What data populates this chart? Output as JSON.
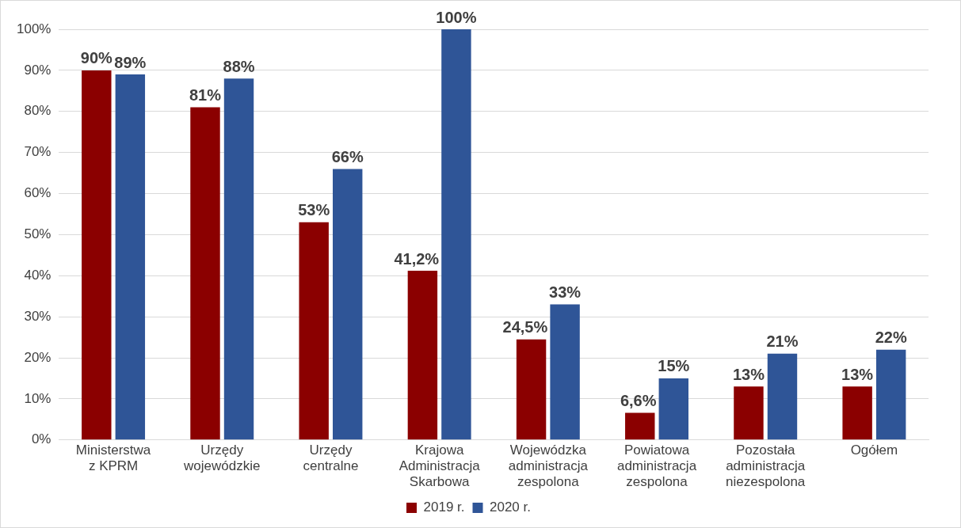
{
  "chart_data": {
    "type": "bar",
    "categories": [
      "Ministerstwa z KPRM",
      "Urzędy wojewódzkie",
      "Urzędy centralne",
      "Krajowa Administracja Skarbowa",
      "Wojewódzka administracja zespolona",
      "Powiatowa administracja zespolona",
      "Pozostała administracja niezespolona",
      "Ogółem"
    ],
    "series": [
      {
        "name": "2019 r.",
        "color": "#8b0000",
        "values": [
          90,
          81,
          53,
          41.2,
          24.5,
          6.6,
          13,
          13
        ],
        "value_labels": [
          "90%",
          "81%",
          "53%",
          "41,2%",
          "24,5%",
          "6,6%",
          "13%",
          "13%"
        ]
      },
      {
        "name": "2020 r.",
        "color": "#2f5597",
        "values": [
          89,
          88,
          66,
          100,
          33,
          15,
          21,
          22
        ],
        "value_labels": [
          "89%",
          "88%",
          "66%",
          "100%",
          "33%",
          "15%",
          "21%",
          "22%"
        ]
      }
    ],
    "ylim": [
      0,
      100
    ],
    "yticks": [
      {
        "value": 0,
        "label": "0%"
      },
      {
        "value": 10,
        "label": "10%"
      },
      {
        "value": 20,
        "label": "20%"
      },
      {
        "value": 30,
        "label": "30%"
      },
      {
        "value": 40,
        "label": "40%"
      },
      {
        "value": 50,
        "label": "50%"
      },
      {
        "value": 60,
        "label": "60%"
      },
      {
        "value": 70,
        "label": "70%"
      },
      {
        "value": 80,
        "label": "80%"
      },
      {
        "value": 90,
        "label": "90%"
      },
      {
        "value": 100,
        "label": "100%"
      }
    ],
    "grid": "y",
    "legend": "bottom"
  }
}
